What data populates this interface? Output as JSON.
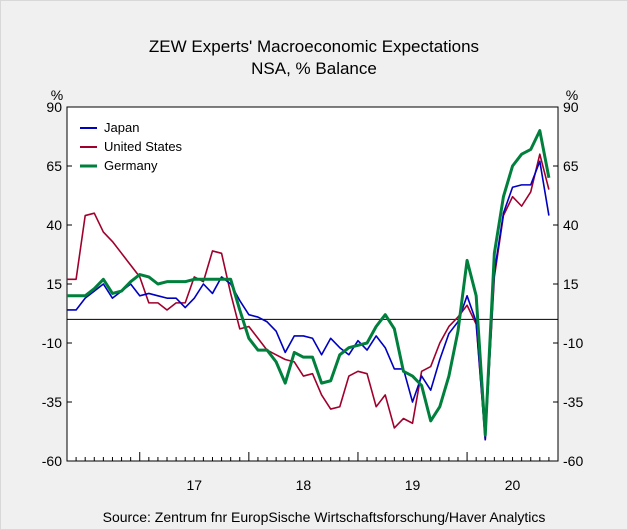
{
  "chart_data": {
    "type": "line",
    "title": "ZEW Experts' Macroeconomic Expectations",
    "subtitle": "NSA, % Balance",
    "ylabel_left": "%",
    "ylabel_right": "%",
    "ylim": [
      -60,
      90
    ],
    "yticks": [
      -60,
      -35,
      -10,
      15,
      40,
      65,
      90
    ],
    "x_year_labels": [
      "17",
      "18",
      "19",
      "20"
    ],
    "reference_line": 0,
    "grid": false,
    "legend_position": "top-left",
    "source": "Source:   Zentrum fnr EuropSische Wirtschaftsforschung/Haver Analytics",
    "x": [
      "2016-05",
      "2016-06",
      "2016-07",
      "2016-08",
      "2016-09",
      "2016-10",
      "2016-11",
      "2016-12",
      "2017-01",
      "2017-02",
      "2017-03",
      "2017-04",
      "2017-05",
      "2017-06",
      "2017-07",
      "2017-08",
      "2017-09",
      "2017-10",
      "2017-11",
      "2017-12",
      "2018-01",
      "2018-02",
      "2018-03",
      "2018-04",
      "2018-05",
      "2018-06",
      "2018-07",
      "2018-08",
      "2018-09",
      "2018-10",
      "2018-11",
      "2018-12",
      "2019-01",
      "2019-02",
      "2019-03",
      "2019-04",
      "2019-05",
      "2019-06",
      "2019-07",
      "2019-08",
      "2019-09",
      "2019-10",
      "2019-11",
      "2019-12",
      "2020-01",
      "2020-02",
      "2020-03",
      "2020-04",
      "2020-05",
      "2020-06",
      "2020-07",
      "2020-08",
      "2020-09",
      "2020-10"
    ],
    "series": [
      {
        "name": "Japan",
        "color": "#0000c0",
        "values": [
          4,
          4,
          9,
          12,
          15,
          9,
          12,
          15,
          10,
          11,
          10,
          9,
          9,
          5,
          9,
          15,
          11,
          18,
          15,
          8,
          2,
          1,
          -1,
          -5,
          -14,
          -7,
          -7,
          -8,
          -15,
          -8,
          -12,
          -15,
          -9,
          -13,
          -7,
          -12,
          -21,
          -21,
          -35,
          -24,
          -30,
          -17,
          -6,
          -1,
          10,
          -1,
          -51,
          20,
          45,
          56,
          57,
          57,
          67,
          44
        ]
      },
      {
        "name": "United States",
        "color": "#a0002c",
        "values": [
          17,
          17,
          44,
          45,
          37,
          33,
          28,
          23,
          18,
          7,
          7,
          4,
          7,
          7,
          18,
          16,
          29,
          28,
          11,
          -4,
          -3,
          -8,
          -13,
          -15,
          -17,
          -18,
          -24,
          -23,
          -32,
          -38,
          -37,
          -24,
          -22,
          -23,
          -37,
          -32,
          -46,
          -42,
          -44,
          -22,
          -20,
          -10,
          -3,
          1,
          6,
          -2,
          -51,
          18,
          44,
          52,
          48,
          54,
          70,
          55
        ]
      },
      {
        "name": "Germany",
        "color": "#00803c",
        "values": [
          10,
          10,
          10,
          13,
          17,
          11,
          12,
          16,
          19,
          18,
          15,
          16,
          16,
          16,
          17,
          17,
          17,
          17,
          17,
          4,
          -8,
          -13,
          -13,
          -18,
          -27,
          -14,
          -16,
          -16,
          -27,
          -26,
          -15,
          -12,
          -11,
          -10,
          -3,
          2,
          -4,
          -22,
          -24,
          -28,
          -43,
          -37,
          -24,
          -5,
          25,
          10,
          -49,
          28,
          52,
          65,
          70,
          72,
          80,
          60
        ]
      }
    ]
  }
}
